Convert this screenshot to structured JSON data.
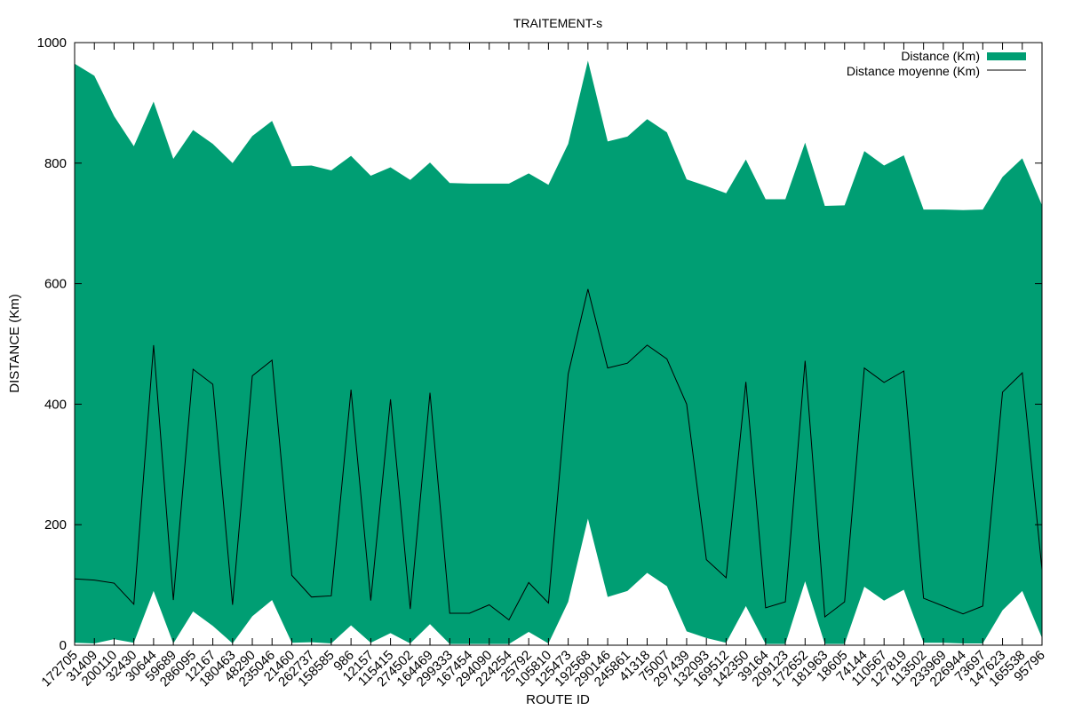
{
  "chart_data": {
    "type": "area",
    "title": "TRAITEMENT-s",
    "xlabel": "ROUTE ID",
    "ylabel": "DISTANCE (Km)",
    "ylim": [
      0,
      1000
    ],
    "yticks": [
      0,
      200,
      400,
      600,
      800,
      1000
    ],
    "legend_position": "top-right",
    "grid": false,
    "categories": [
      "172705",
      "31409",
      "200110",
      "32430",
      "30644",
      "59689",
      "286095",
      "12167",
      "180463",
      "48290",
      "235046",
      "21460",
      "262737",
      "158585",
      "986",
      "12157",
      "115415",
      "274502",
      "164469",
      "299333",
      "167454",
      "294090",
      "224254",
      "25792",
      "105810",
      "125473",
      "192568",
      "290146",
      "245861",
      "41318",
      "75007",
      "297439",
      "132093",
      "169512",
      "142350",
      "39164",
      "209123",
      "172652",
      "181963",
      "18605",
      "74144",
      "110567",
      "127819",
      "113502",
      "233969",
      "226944",
      "73697",
      "147623",
      "165538",
      "95796"
    ],
    "series": [
      {
        "name": "Distance (Km)",
        "kind": "range",
        "color": "#009e73",
        "low": [
          4,
          3,
          10,
          4,
          90,
          3,
          56,
          32,
          3,
          48,
          75,
          4,
          5,
          3,
          33,
          4,
          20,
          3,
          35,
          2,
          2,
          2,
          2,
          22,
          3,
          72,
          210,
          80,
          90,
          120,
          98,
          23,
          12,
          4,
          65,
          2,
          2,
          106,
          2,
          2,
          97,
          74,
          92,
          4,
          4,
          3,
          3,
          58,
          90,
          12
        ],
        "high": [
          965,
          945,
          878,
          828,
          902,
          807,
          855,
          832,
          800,
          845,
          870,
          795,
          796,
          788,
          812,
          779,
          793,
          772,
          801,
          767,
          766,
          766,
          766,
          783,
          764,
          832,
          970,
          836,
          844,
          873,
          851,
          773,
          762,
          750,
          806,
          740,
          740,
          834,
          729,
          730,
          820,
          796,
          813,
          723,
          723,
          722,
          723,
          777,
          808,
          730
        ]
      },
      {
        "name": "Distance moyenne (Km)",
        "kind": "line",
        "color": "#000000",
        "values": [
          110,
          108,
          103,
          68,
          498,
          75,
          458,
          433,
          67,
          447,
          473,
          116,
          80,
          82,
          424,
          74,
          408,
          60,
          419,
          53,
          53,
          67,
          42,
          104,
          70,
          450,
          591,
          460,
          468,
          498,
          475,
          400,
          142,
          112,
          437,
          62,
          72,
          472,
          47,
          72,
          460,
          436,
          455,
          78,
          65,
          52,
          65,
          420,
          452,
          125
        ]
      }
    ]
  }
}
